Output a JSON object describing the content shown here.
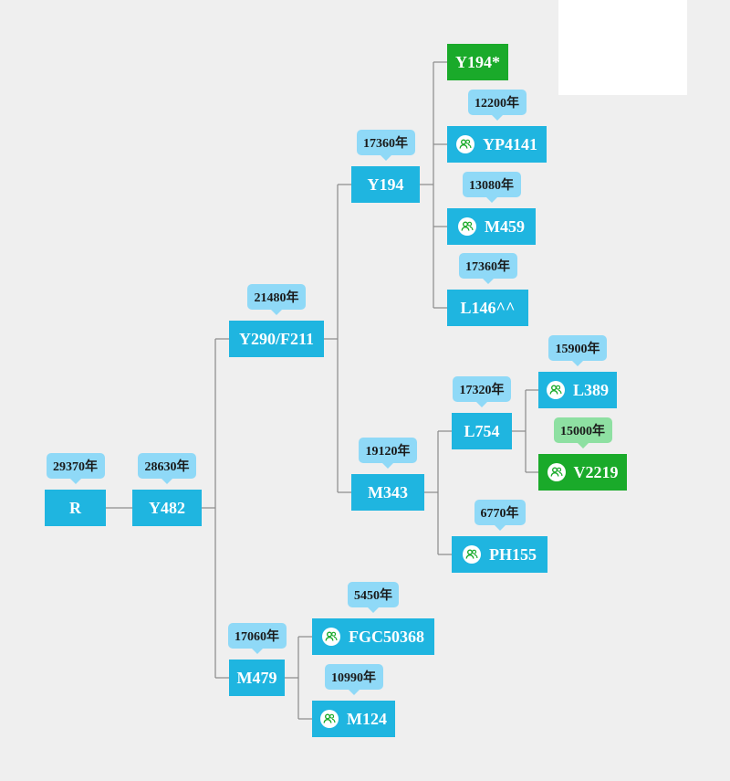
{
  "tree": {
    "nodes": [
      {
        "id": "R",
        "label": "R",
        "age": "29370年",
        "color": "blue",
        "icon": ""
      },
      {
        "id": "Y482",
        "label": "Y482",
        "age": "28630年",
        "color": "blue",
        "icon": ""
      },
      {
        "id": "Y290",
        "label": "Y290/F211",
        "age": "21480年",
        "color": "blue",
        "icon": ""
      },
      {
        "id": "Y194",
        "label": "Y194",
        "age": "17360年",
        "color": "blue",
        "icon": ""
      },
      {
        "id": "Y194s",
        "label": "Y194*",
        "age": "",
        "color": "green",
        "icon": ""
      },
      {
        "id": "YP4141",
        "label": "YP4141",
        "age": "12200年",
        "color": "blue",
        "icon": "user-group-icon"
      },
      {
        "id": "M459",
        "label": "M459",
        "age": "13080年",
        "color": "blue",
        "icon": "user-group-icon"
      },
      {
        "id": "L146",
        "label": "L146^^",
        "age": "17360年",
        "color": "blue",
        "icon": ""
      },
      {
        "id": "M343",
        "label": "M343",
        "age": "19120年",
        "color": "blue",
        "icon": ""
      },
      {
        "id": "L754",
        "label": "L754",
        "age": "17320年",
        "color": "blue",
        "icon": ""
      },
      {
        "id": "L389",
        "label": "L389",
        "age": "15900年",
        "color": "blue",
        "icon": "user-group-icon"
      },
      {
        "id": "V2219",
        "label": "V2219",
        "age": "15000年",
        "color": "green",
        "icon": "user-group-icon"
      },
      {
        "id": "PH155",
        "label": "PH155",
        "age": "6770年",
        "color": "blue",
        "icon": "user-group-icon"
      },
      {
        "id": "M479",
        "label": "M479",
        "age": "17060年",
        "color": "blue",
        "icon": ""
      },
      {
        "id": "FGC50368",
        "label": "FGC50368",
        "age": "5450年",
        "color": "blue",
        "icon": "user-group-icon"
      },
      {
        "id": "M124",
        "label": "M124",
        "age": "10990年",
        "color": "blue",
        "icon": "user-group-icon"
      }
    ],
    "edges": [
      [
        "R",
        "Y482"
      ],
      [
        "Y482",
        "Y290"
      ],
      [
        "Y482",
        "M479"
      ],
      [
        "Y290",
        "Y194"
      ],
      [
        "Y290",
        "M343"
      ],
      [
        "Y194",
        "Y194s"
      ],
      [
        "Y194",
        "YP4141"
      ],
      [
        "Y194",
        "M459"
      ],
      [
        "Y194",
        "L146"
      ],
      [
        "M343",
        "L754"
      ],
      [
        "M343",
        "PH155"
      ],
      [
        "L754",
        "L389"
      ],
      [
        "L754",
        "V2219"
      ],
      [
        "M479",
        "FGC50368"
      ],
      [
        "M479",
        "M124"
      ]
    ]
  },
  "colors": {
    "node_blue": "#1fb5e0",
    "node_green": "#1aaa2a",
    "tag_blue": "#8fd9f7",
    "tag_green": "#8ee0a2",
    "line": "#8a8a8a",
    "background": "#efefef"
  }
}
